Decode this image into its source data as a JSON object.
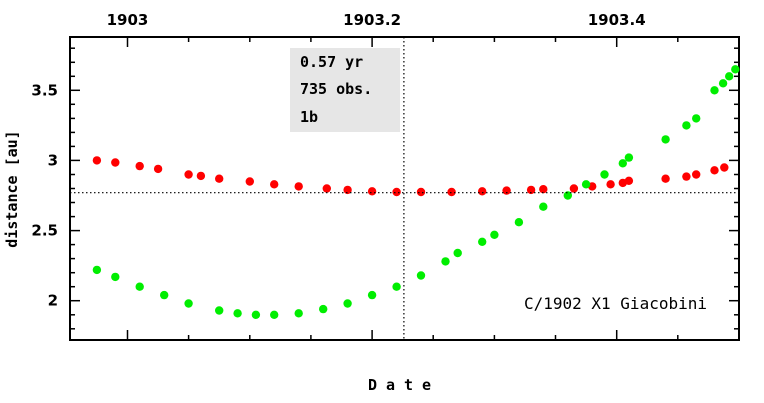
{
  "chart_data": {
    "type": "scatter",
    "xlabel": "Date",
    "ylabel": "distance [au]",
    "xlim": [
      1902.953,
      1903.5
    ],
    "ylim": [
      1.72,
      3.88
    ],
    "x_ticks": [
      1903,
      1903.2,
      1903.4
    ],
    "x_tick_labels": [
      "1903",
      "1903.2",
      "1903.4"
    ],
    "y_ticks": [
      2,
      2.5,
      3,
      3.5
    ],
    "y_tick_labels": [
      "2",
      "2.5",
      "3",
      "3.5"
    ],
    "info_box": [
      "0.57 yr",
      "735 obs.",
      "1b"
    ],
    "annotation": "C/1902 X1 Giacobini",
    "reference_lines": {
      "vertical_x": 1903.226,
      "horizontal_y": 2.77
    },
    "colors": {
      "red_series": "#ff0000",
      "green_series": "#00ee00",
      "info_box_bg": "#e6e6e6"
    },
    "series": [
      {
        "color": "#ff0000",
        "points": [
          [
            1902.975,
            3.0
          ],
          [
            1902.99,
            2.985
          ],
          [
            1903.01,
            2.96
          ],
          [
            1903.025,
            2.94
          ],
          [
            1903.05,
            2.9
          ],
          [
            1903.06,
            2.89
          ],
          [
            1903.075,
            2.87
          ],
          [
            1903.1,
            2.85
          ],
          [
            1903.12,
            2.83
          ],
          [
            1903.14,
            2.815
          ],
          [
            1903.163,
            2.8
          ],
          [
            1903.18,
            2.79
          ],
          [
            1903.2,
            2.78
          ],
          [
            1903.22,
            2.775
          ],
          [
            1903.24,
            2.775
          ],
          [
            1903.265,
            2.775
          ],
          [
            1903.29,
            2.78
          ],
          [
            1903.31,
            2.785
          ],
          [
            1903.33,
            2.79
          ],
          [
            1903.34,
            2.795
          ],
          [
            1903.365,
            2.8
          ],
          [
            1903.38,
            2.815
          ],
          [
            1903.395,
            2.83
          ],
          [
            1903.405,
            2.84
          ],
          [
            1903.41,
            2.855
          ],
          [
            1903.44,
            2.87
          ],
          [
            1903.457,
            2.885
          ],
          [
            1903.465,
            2.9
          ],
          [
            1903.48,
            2.93
          ],
          [
            1903.488,
            2.95
          ]
        ]
      },
      {
        "color": "#00ee00",
        "points": [
          [
            1902.975,
            2.22
          ],
          [
            1902.99,
            2.17
          ],
          [
            1903.01,
            2.1
          ],
          [
            1903.03,
            2.04
          ],
          [
            1903.05,
            1.98
          ],
          [
            1903.075,
            1.93
          ],
          [
            1903.09,
            1.91
          ],
          [
            1903.105,
            1.9
          ],
          [
            1903.12,
            1.9
          ],
          [
            1903.14,
            1.91
          ],
          [
            1903.16,
            1.94
          ],
          [
            1903.18,
            1.98
          ],
          [
            1903.2,
            2.04
          ],
          [
            1903.22,
            2.1
          ],
          [
            1903.24,
            2.18
          ],
          [
            1903.26,
            2.28
          ],
          [
            1903.27,
            2.34
          ],
          [
            1903.29,
            2.42
          ],
          [
            1903.3,
            2.47
          ],
          [
            1903.32,
            2.56
          ],
          [
            1903.34,
            2.67
          ],
          [
            1903.36,
            2.75
          ],
          [
            1903.375,
            2.83
          ],
          [
            1903.39,
            2.9
          ],
          [
            1903.405,
            2.98
          ],
          [
            1903.41,
            3.02
          ],
          [
            1903.44,
            3.15
          ],
          [
            1903.457,
            3.25
          ],
          [
            1903.465,
            3.3
          ],
          [
            1903.48,
            3.5
          ],
          [
            1903.487,
            3.55
          ],
          [
            1903.492,
            3.6
          ],
          [
            1903.497,
            3.65
          ]
        ]
      }
    ]
  }
}
